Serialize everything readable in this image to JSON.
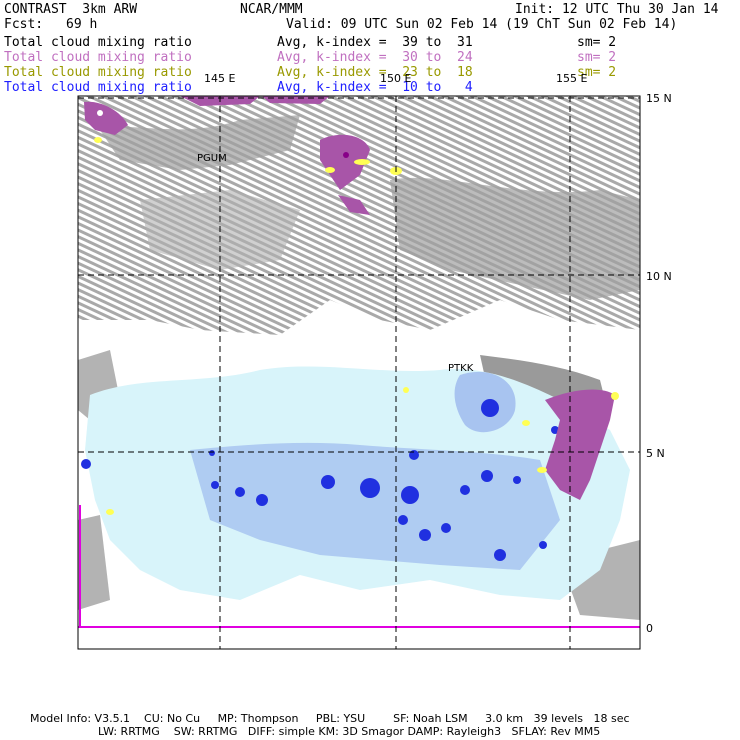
{
  "header": {
    "model": "CONTRAST  3km ARW",
    "org": "NCAR/MMM",
    "init": "Init: 12 UTC Thu 30 Jan 14",
    "fcst_label": "Fcst:",
    "fcst_value": "69 h",
    "valid": "Valid: 09 UTC Sun 02 Feb 14 (19 ChT Sun 02 Feb 14)"
  },
  "fields": [
    {
      "name": "Total cloud mixing ratio",
      "range": "Avg, k-index =  39 to  31",
      "smooth": "sm= 2",
      "color": "#000000"
    },
    {
      "name": "Total cloud mixing ratio",
      "range": "Avg, k-index =  30 to  24",
      "smooth": "sm= 2",
      "color": "#c070c0"
    },
    {
      "name": "Total cloud mixing ratio",
      "range": "Avg, k-index =  23 to  18",
      "smooth": "sm= 2",
      "color": "#999900"
    },
    {
      "name": "Total cloud mixing ratio",
      "range": "Avg, k-index =  10 to   4",
      "smooth": "",
      "color": "#2020ff"
    }
  ],
  "map": {
    "lon_labels": [
      "145 E",
      "150 E",
      "155 E"
    ],
    "lat_labels": [
      "15 N",
      "10 N",
      "5 N",
      "0"
    ],
    "stations": [
      "PGUM",
      "PTKK"
    ],
    "colors": {
      "high_cloud": "#999999",
      "mid_cloud": "#a855a8",
      "low_cloud": "#ffff55",
      "shallow_light": "#d8f4fa",
      "shallow_mid": "#a8c4f0",
      "shallow_dark": "#2030e0",
      "boundary": "#e000e0"
    }
  },
  "footer": {
    "line1": "Model Info: V3.5.1    CU: No Cu     MP: Thompson     PBL: YSU        SF: Noah LSM     3.0 km   39 levels   18 sec",
    "line2": "LW: RRTMG    SW: RRTMG   DIFF: simple KM: 3D Smagor DAMP: Rayleigh3   SFLAY: Rev MM5"
  }
}
